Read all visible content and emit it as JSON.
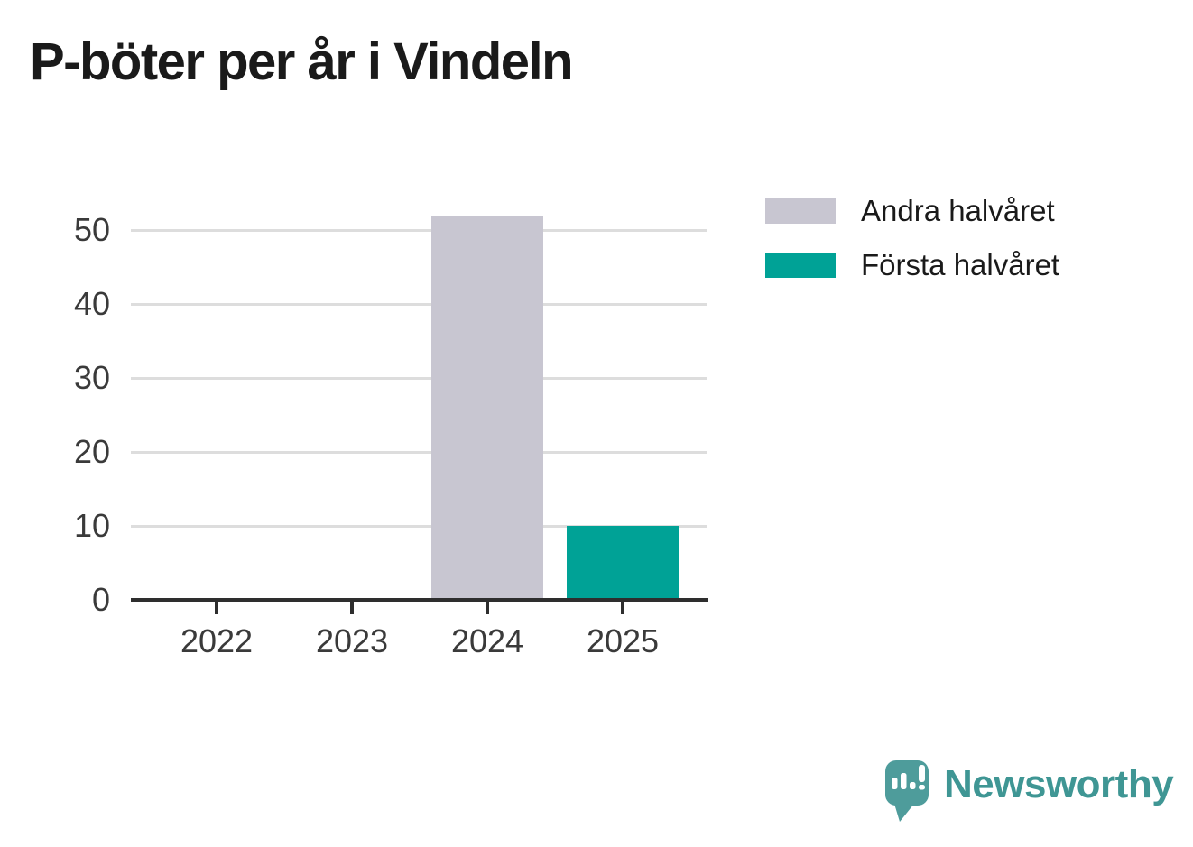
{
  "title": "P-böter per år i Vindeln",
  "chart_data": {
    "type": "bar",
    "stacked": true,
    "categories": [
      "2022",
      "2023",
      "2024",
      "2025"
    ],
    "series": [
      {
        "name": "Andra halvåret",
        "color": "#c8c6d1",
        "values": [
          0,
          0,
          52,
          0
        ]
      },
      {
        "name": "Första halvåret",
        "color": "#00a296",
        "values": [
          0,
          0,
          0,
          10
        ]
      }
    ],
    "title": "P-böter per år i Vindeln",
    "xlabel": "",
    "ylabel": "",
    "ylim": [
      0,
      55
    ],
    "yticks": [
      0,
      10,
      20,
      30,
      40,
      50
    ],
    "grid": true,
    "legend_position": "top-right"
  },
  "colors": {
    "axis": "#2e2e2e",
    "gridline": "#dddddd",
    "tick_text": "#3a3a3a",
    "title_text": "#1a1a1a"
  },
  "branding": {
    "logo_text": "Newsworthy",
    "logo_text_color": "#3f9694",
    "bubble_color": "#4e9c9b",
    "logo_icon": "speech-bubble-bar-chart-exclamation-icon"
  }
}
